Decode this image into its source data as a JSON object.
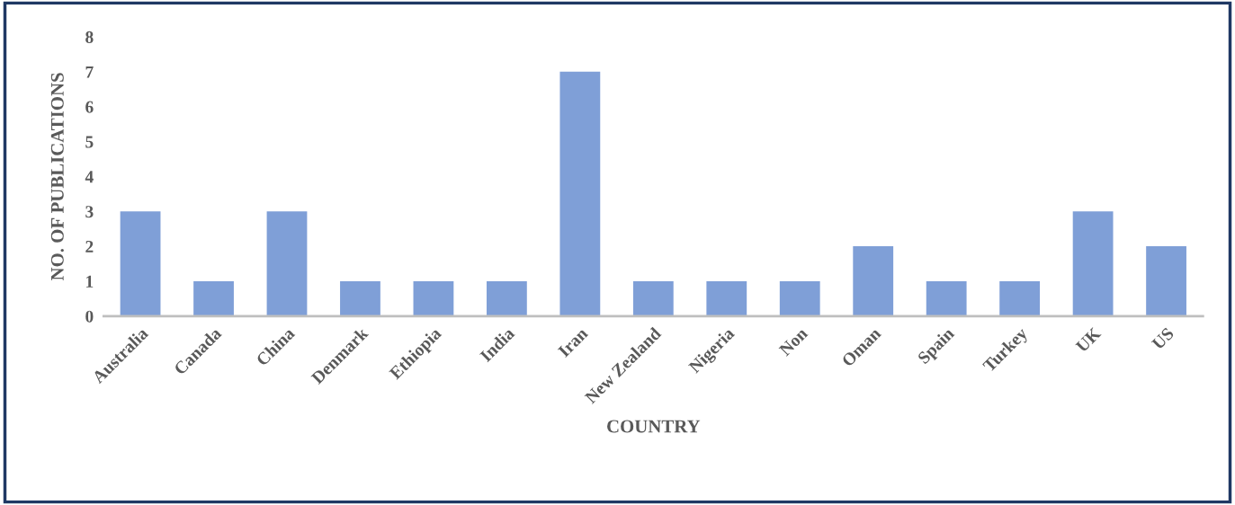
{
  "chart_data": {
    "type": "bar",
    "xlabel": "COUNTRY",
    "ylabel": "NO. OF PUBLICATIONS",
    "categories": [
      "Australia",
      "Canada",
      "China",
      "Denmark",
      "Ethiopia",
      "India",
      "Iran",
      "New Zealand",
      "Nigeria",
      "Non",
      "Oman",
      "Spain",
      "Turkey",
      "UK",
      "US"
    ],
    "values": [
      3,
      1,
      3,
      1,
      1,
      1,
      7,
      1,
      1,
      1,
      2,
      1,
      1,
      3,
      2
    ],
    "color": "#7f9fd7",
    "ylim": [
      0,
      8
    ],
    "yticks": [
      0,
      1,
      2,
      3,
      4,
      5,
      6,
      7,
      8
    ],
    "grid": false,
    "legend": false
  }
}
